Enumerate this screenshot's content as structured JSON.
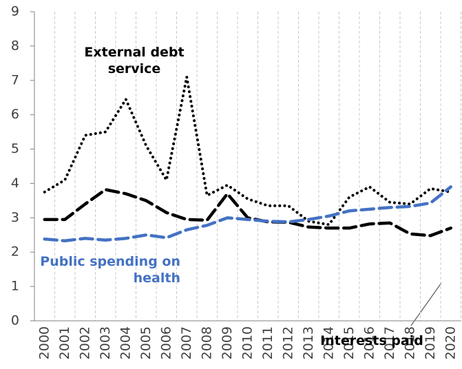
{
  "chart_data": {
    "type": "line",
    "categories": [
      "2000",
      "2001",
      "2002",
      "2003",
      "2004",
      "2005",
      "2006",
      "2007",
      "2008",
      "2009",
      "2010",
      "2011",
      "2012",
      "2013",
      "2014",
      "2015",
      "2016",
      "2017",
      "2018",
      "2019",
      "2020"
    ],
    "series": [
      {
        "name": "External debt service",
        "color": "#000000",
        "line_style": "dotted",
        "values": [
          3.75,
          4.1,
          5.4,
          5.5,
          6.45,
          5.1,
          4.1,
          7.1,
          3.65,
          3.95,
          3.55,
          3.35,
          3.35,
          2.9,
          2.8,
          3.6,
          3.9,
          3.45,
          3.4,
          3.85,
          3.75
        ]
      },
      {
        "name": "Interests paid",
        "color": "#000000",
        "line_style": "dashed",
        "values": [
          2.95,
          2.95,
          3.4,
          3.82,
          3.7,
          3.5,
          3.15,
          2.95,
          2.93,
          3.7,
          3.0,
          2.88,
          2.87,
          2.73,
          2.7,
          2.7,
          2.82,
          2.85,
          2.53,
          2.48,
          2.7
        ]
      },
      {
        "name": "Public spending on health",
        "color": "#4472c4",
        "line_style": "dashed",
        "values": [
          2.38,
          2.33,
          2.4,
          2.35,
          2.4,
          2.5,
          2.42,
          2.65,
          2.78,
          3.0,
          2.95,
          2.9,
          2.88,
          2.95,
          3.05,
          3.2,
          3.25,
          3.3,
          3.33,
          3.43,
          3.9
        ]
      }
    ],
    "ylim": [
      0,
      9
    ],
    "yticks": [
      0,
      1,
      2,
      3,
      4,
      5,
      6,
      7,
      8,
      9
    ],
    "grid": "vertical-dashed"
  }
}
